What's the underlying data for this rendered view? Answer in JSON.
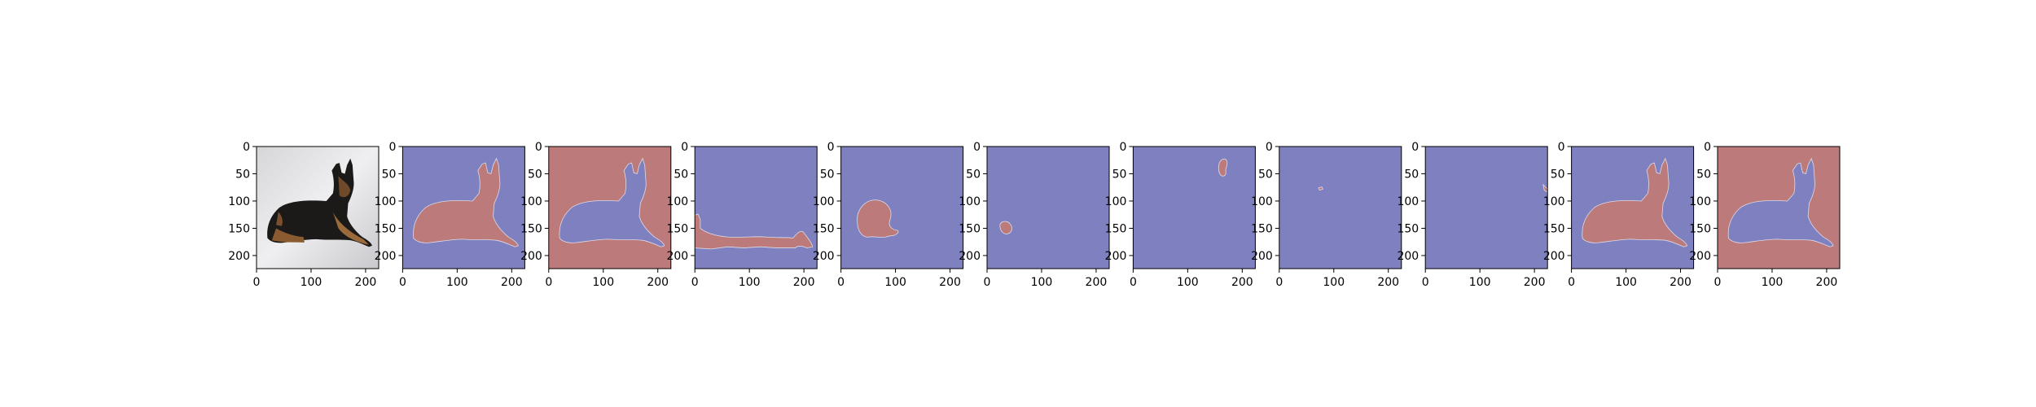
{
  "chart_data": {
    "type": "image-grid",
    "description_panels": 11,
    "x_ticks": [
      0,
      100,
      200
    ],
    "y_ticks": [
      0,
      50,
      100,
      150,
      200
    ],
    "xlim": [
      0,
      224
    ],
    "ylim": [
      224,
      0
    ],
    "grid": false,
    "colors": {
      "mask_fg": "#bc7a7a",
      "mask_bg": "#7f80c0",
      "edge": "#dcdce8",
      "axis": "#000000"
    },
    "panels": [
      {
        "kind": "photo"
      },
      {
        "kind": "mask",
        "region": "dog",
        "inverted": false
      },
      {
        "kind": "mask",
        "region": "dog",
        "inverted": true
      },
      {
        "kind": "mask",
        "region": "shadow",
        "inverted": false
      },
      {
        "kind": "mask",
        "region": "head-patch",
        "inverted": false
      },
      {
        "kind": "mask",
        "region": "small-blob",
        "inverted": false
      },
      {
        "kind": "mask",
        "region": "ear-blob",
        "inverted": false
      },
      {
        "kind": "mask",
        "region": "tiny-dot",
        "inverted": false
      },
      {
        "kind": "mask",
        "region": "edge-sliver",
        "inverted": false
      },
      {
        "kind": "mask",
        "region": "dog",
        "inverted": false
      },
      {
        "kind": "mask",
        "region": "dog",
        "inverted": true
      }
    ]
  }
}
